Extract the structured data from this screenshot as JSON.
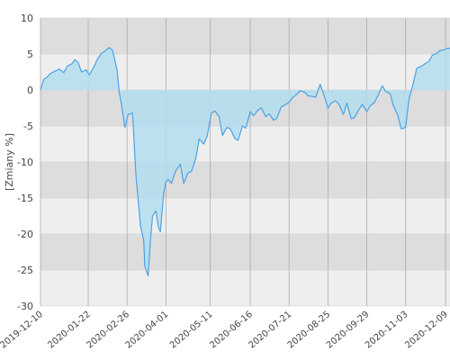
{
  "chart_data": {
    "type": "area",
    "title": "",
    "xlabel": "",
    "ylabel": "[Zmiany %]",
    "ylim": [
      -30,
      10
    ],
    "yticks": [
      -30,
      -25,
      -20,
      -15,
      -10,
      -5,
      0,
      5,
      10
    ],
    "xlim": [
      "2019-12-10",
      "2020-12-13"
    ],
    "xticks": [
      "2019-12-10",
      "2020-01-22",
      "2020-02-26",
      "2020-04-01",
      "2020-05-11",
      "2020-06-16",
      "2020-07-21",
      "2020-08-25",
      "2020-09-29",
      "2020-11-03",
      "2020-12-09"
    ],
    "grid": true,
    "legend": "none",
    "colors": {
      "line": "#4ba3e8",
      "area": "#b4ddef",
      "band_dark": "#dddddd",
      "band_light": "#eeeeee",
      "gridline": "#aaaaaa"
    },
    "series": [
      {
        "x": [
          "2019-12-10",
          "2019-12-13",
          "2019-12-16",
          "2019-12-19",
          "2019-12-23",
          "2019-12-27",
          "2019-12-31",
          "2020-01-03",
          "2020-01-07",
          "2020-01-10",
          "2020-01-13",
          "2020-01-16",
          "2020-01-20",
          "2020-01-23",
          "2020-01-27",
          "2020-01-30",
          "2020-02-03",
          "2020-02-06",
          "2020-02-10",
          "2020-02-13",
          "2020-02-17",
          "2020-02-19",
          "2020-02-21",
          "2020-02-24",
          "2020-02-27",
          "2020-03-02",
          "2020-03-05",
          "2020-03-09",
          "2020-03-12",
          "2020-03-13",
          "2020-03-16",
          "2020-03-18",
          "2020-03-20",
          "2020-03-23",
          "2020-03-25",
          "2020-03-27",
          "2020-03-30",
          "2020-04-01",
          "2020-04-03",
          "2020-04-06",
          "2020-04-08",
          "2020-04-10",
          "2020-04-14",
          "2020-04-17",
          "2020-04-21",
          "2020-04-24",
          "2020-04-28",
          "2020-05-01",
          "2020-05-05",
          "2020-05-08",
          "2020-05-12",
          "2020-05-15",
          "2020-05-19",
          "2020-05-22",
          "2020-05-26",
          "2020-05-29",
          "2020-06-02",
          "2020-06-05",
          "2020-06-09",
          "2020-06-12",
          "2020-06-16",
          "2020-06-19",
          "2020-06-23",
          "2020-06-26",
          "2020-06-30",
          "2020-07-03",
          "2020-07-07",
          "2020-07-10",
          "2020-07-14",
          "2020-07-17",
          "2020-07-21",
          "2020-07-24",
          "2020-07-28",
          "2020-07-31",
          "2020-08-04",
          "2020-08-07",
          "2020-08-11",
          "2020-08-14",
          "2020-08-18",
          "2020-08-21",
          "2020-08-25",
          "2020-08-28",
          "2020-09-01",
          "2020-09-04",
          "2020-09-08",
          "2020-09-11",
          "2020-09-15",
          "2020-09-18",
          "2020-09-22",
          "2020-09-25",
          "2020-09-29",
          "2020-10-02",
          "2020-10-06",
          "2020-10-09",
          "2020-10-13",
          "2020-10-16",
          "2020-10-20",
          "2020-10-23",
          "2020-10-27",
          "2020-10-30",
          "2020-11-03",
          "2020-11-06",
          "2020-11-10",
          "2020-11-13",
          "2020-11-17",
          "2020-11-20",
          "2020-11-24",
          "2020-11-27",
          "2020-12-01",
          "2020-12-04",
          "2020-12-08",
          "2020-12-11",
          "2020-12-13"
        ],
        "values": [
          0,
          1.5,
          1.8,
          2.3,
          2.6,
          2.9,
          2.4,
          3.3,
          3.6,
          4.2,
          3.8,
          2.5,
          2.8,
          2.1,
          3.2,
          4.2,
          5.1,
          5.4,
          5.9,
          5.5,
          2.8,
          -0.3,
          -2.0,
          -5.2,
          -3.4,
          -3.2,
          -11.8,
          -18.8,
          -20.9,
          -24.5,
          -25.8,
          -21.0,
          -17.5,
          -16.8,
          -18.9,
          -19.7,
          -14.3,
          -12.8,
          -12.4,
          -13.0,
          -12.0,
          -11.2,
          -10.3,
          -13.0,
          -11.5,
          -11.3,
          -9.5,
          -6.8,
          -7.5,
          -6.5,
          -3.2,
          -2.9,
          -3.7,
          -6.3,
          -5.2,
          -5.4,
          -6.7,
          -7.0,
          -5.0,
          -5.3,
          -3.0,
          -3.6,
          -2.8,
          -2.5,
          -3.7,
          -3.3,
          -4.2,
          -3.9,
          -2.3,
          -2.1,
          -1.7,
          -1.1,
          -0.6,
          -0.1,
          -0.3,
          -0.8,
          -0.9,
          -1.0,
          0.8,
          -0.5,
          -2.5,
          -1.8,
          -1.5,
          -2.0,
          -3.4,
          -1.8,
          -4.0,
          -3.8,
          -2.7,
          -2.0,
          -3.0,
          -2.2,
          -1.7,
          -0.8,
          0.6,
          -0.2,
          -0.5,
          -2.2,
          -3.5,
          -5.4,
          -5.2,
          -1.3,
          1.0,
          3.0,
          3.3,
          3.6,
          4.0,
          4.8,
          5.1,
          5.5,
          5.6,
          5.8,
          5.8
        ]
      }
    ]
  }
}
